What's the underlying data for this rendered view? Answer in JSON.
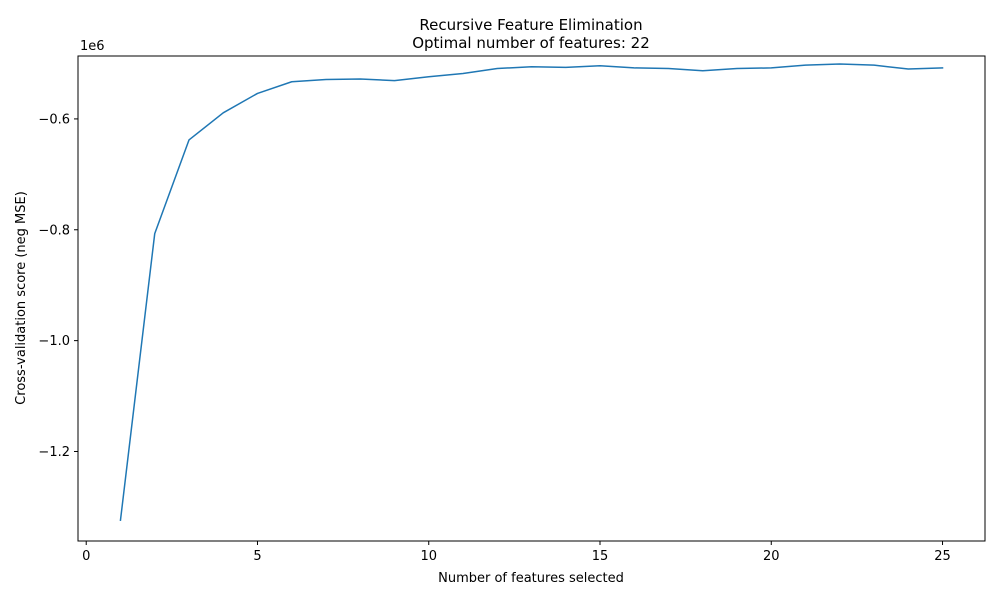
{
  "chart_data": {
    "type": "line",
    "title": "Recursive Feature Elimination",
    "subtitle": "Optimal number of features: 22",
    "xlabel": "Number of features selected",
    "ylabel": "Cross-validation score (neg MSE)",
    "y_offset_text": "1e6",
    "xlim": [
      -0.24,
      26.24
    ],
    "ylim": [
      -1.3615,
      -0.4865
    ],
    "xticks": [
      0,
      5,
      10,
      15,
      20,
      25
    ],
    "xtick_labels": [
      "0",
      "5",
      "10",
      "15",
      "20",
      "25"
    ],
    "yticks": [
      -0.6,
      -0.8,
      -1.0,
      -1.2
    ],
    "ytick_labels": [
      "−0.6",
      "−0.8",
      "−1.0",
      "−1.2"
    ],
    "grid": false,
    "series": [
      {
        "color": "#1f77b4",
        "x": [
          1,
          2,
          3,
          4,
          5,
          6,
          7,
          8,
          9,
          10,
          11,
          12,
          13,
          14,
          15,
          16,
          17,
          18,
          19,
          20,
          21,
          22,
          23,
          24,
          25
        ],
        "y": [
          -1.324,
          -0.807,
          -0.638,
          -0.589,
          -0.554,
          -0.533,
          -0.529,
          -0.528,
          -0.531,
          -0.524,
          -0.518,
          -0.509,
          -0.506,
          -0.507,
          -0.504,
          -0.508,
          -0.509,
          -0.513,
          -0.509,
          -0.508,
          -0.503,
          -0.501,
          -0.503,
          -0.51,
          -0.508
        ]
      }
    ]
  }
}
